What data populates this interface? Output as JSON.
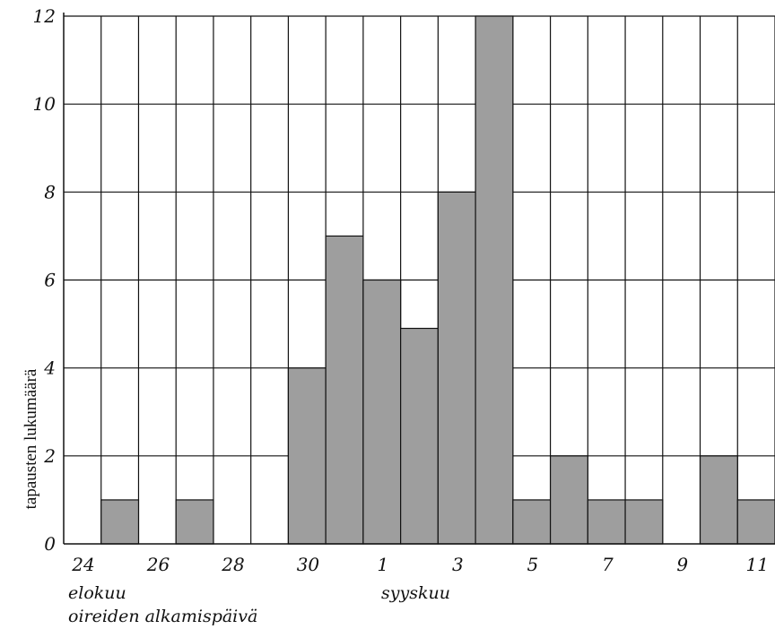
{
  "chart_data": {
    "type": "bar",
    "categories": [
      "24",
      "25",
      "26",
      "27",
      "28",
      "29",
      "30",
      "31",
      "1",
      "2",
      "3",
      "4",
      "5",
      "6",
      "7",
      "8",
      "9",
      "10",
      "11"
    ],
    "values": [
      0,
      1,
      0,
      1,
      0,
      0,
      4,
      7,
      6,
      4.9,
      8,
      12,
      1,
      2,
      1,
      1,
      0,
      2,
      1
    ],
    "ylim": [
      0,
      12
    ],
    "yticks": [
      0,
      2,
      4,
      6,
      8,
      10,
      12
    ],
    "ylabel": "tapausten lukumäärä",
    "xtick_labels": [
      {
        "label": "24",
        "at": 0
      },
      {
        "label": "26",
        "at": 2
      },
      {
        "label": "28",
        "at": 4
      },
      {
        "label": "30",
        "at": 6
      },
      {
        "label": "1",
        "at": 8
      },
      {
        "label": "3",
        "at": 10
      },
      {
        "label": "5",
        "at": 12
      },
      {
        "label": "7",
        "at": 14
      },
      {
        "label": "9",
        "at": 16
      },
      {
        "label": "11",
        "at": 18
      }
    ],
    "month_labels": [
      "elokuu",
      "syyskuu"
    ],
    "xlabel": "oireiden alkamispäivä",
    "grid": true,
    "colors": {
      "bar": "#9e9e9e",
      "line": "#111111"
    }
  }
}
